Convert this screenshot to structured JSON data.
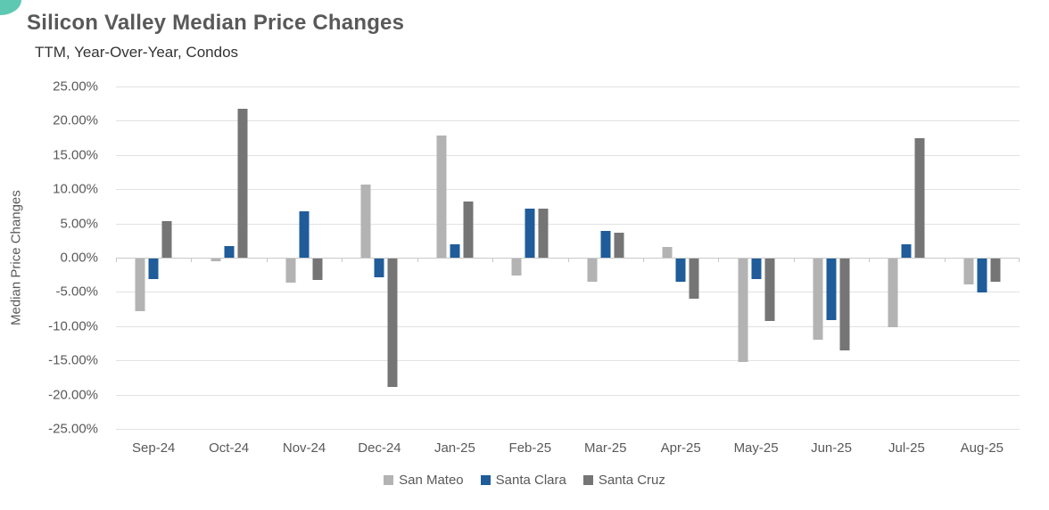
{
  "chart_data": {
    "type": "bar",
    "title": "Silicon Valley Median Price Changes",
    "subtitle": "TTM, Year-Over-Year, Condos",
    "ylabel": "Median Price Changes",
    "xlabel": "",
    "value_unit": "percent",
    "categories": [
      "Sep-24",
      "Oct-24",
      "Nov-24",
      "Dec-24",
      "Jan-25",
      "Feb-25",
      "Mar-25",
      "Apr-25",
      "May-25",
      "Jun-25",
      "Jul-25",
      "Aug-25"
    ],
    "series": [
      {
        "name": "San Mateo",
        "color": "#B3B3B3",
        "values": [
          -7.7,
          -0.4,
          -3.5,
          10.7,
          17.8,
          -2.5,
          -3.4,
          1.5,
          -15.1,
          -11.8,
          -10.0,
          -3.8
        ]
      },
      {
        "name": "Santa Clara",
        "color": "#1F5C99",
        "values": [
          -3.0,
          1.7,
          6.8,
          -2.7,
          2.0,
          7.1,
          3.9,
          -3.4,
          -3.0,
          -9.0,
          2.0,
          -5.0
        ]
      },
      {
        "name": "Santa Cruz",
        "color": "#757575",
        "values": [
          5.4,
          21.7,
          -3.1,
          -18.8,
          8.2,
          7.2,
          3.6,
          -5.8,
          -9.1,
          -13.4,
          17.4,
          -3.4
        ]
      }
    ],
    "ylim": [
      -25,
      25
    ],
    "ytick_step": 5,
    "yticks": [
      "25.00%",
      "20.00%",
      "15.00%",
      "10.00%",
      "5.00%",
      "0.00%",
      "-5.00%",
      "-10.00%",
      "-15.00%",
      "-20.00%",
      "-25.00%"
    ],
    "grid": true,
    "legend_position": "bottom"
  },
  "styles": {
    "background": "#FFFFFF",
    "corner_accent": "#5EC8B2",
    "title_color": "#595959",
    "subtitle_color": "#333333",
    "axis_text_color": "#595959",
    "gridline_color": "#E2E2E2",
    "axis_line_color": "#C8C8C8"
  }
}
